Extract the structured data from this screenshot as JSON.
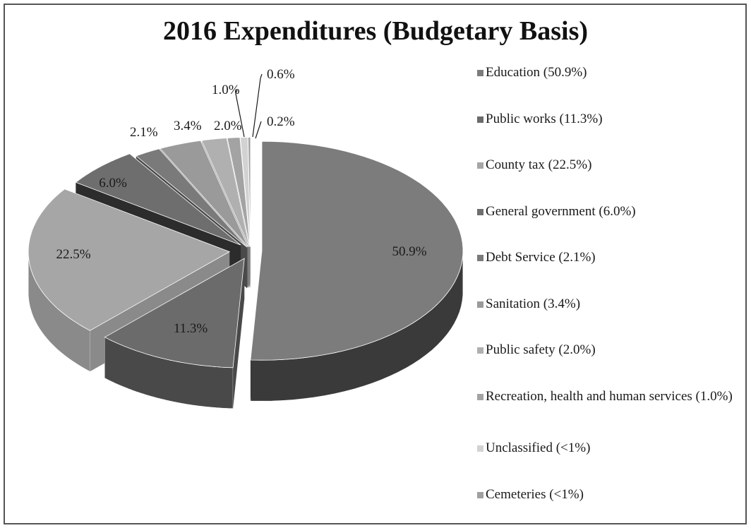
{
  "chart_data": {
    "type": "pie",
    "title": "2016 Expenditures (Budgetary Basis)",
    "slices": [
      {
        "name": "Education",
        "legend_label": "Education (50.9%)",
        "value": 50.9,
        "data_label": "50.9%",
        "color": "#7c7c7c",
        "side_color": "#3a3a3a"
      },
      {
        "name": "Public works",
        "legend_label": "Public works (11.3%)",
        "value": 11.3,
        "data_label": "11.3%",
        "color": "#6b6b6b",
        "side_color": "#494949"
      },
      {
        "name": "County tax",
        "legend_label": "County tax (22.5%)",
        "value": 22.5,
        "data_label": "22.5%",
        "color": "#a6a6a6",
        "side_color": "#8a8a8a"
      },
      {
        "name": "General government",
        "legend_label": "General government (6.0%)",
        "value": 6.0,
        "data_label": "6.0%",
        "color": "#6e6e6e",
        "side_color": "#2c2c2c"
      },
      {
        "name": "Debt Service",
        "legend_label": "Debt Service (2.1%)",
        "value": 2.1,
        "data_label": "2.1%",
        "color": "#7a7a7a",
        "side_color": "#4a4a4a"
      },
      {
        "name": "Sanitation",
        "legend_label": "Sanitation (3.4%)",
        "value": 3.4,
        "data_label": "3.4%",
        "color": "#9a9a9a",
        "side_color": "#6e6e6e"
      },
      {
        "name": "Public safety",
        "legend_label": "Public safety (2.0%)",
        "value": 2.0,
        "data_label": "2.0%",
        "color": "#b0b0b0",
        "side_color": "#868686"
      },
      {
        "name": "Recreation, health and human services",
        "legend_label": "Recreation, health and human services (1.0%)",
        "value": 1.0,
        "data_label": "1.0%",
        "color": "#a3a3a3",
        "side_color": "#7a7a7a"
      },
      {
        "name": "Unclassified",
        "legend_label": "Unclassified (<1%)",
        "value": 0.6,
        "data_label": "0.6%",
        "color": "#d2d2d2",
        "side_color": "#a8a8a8"
      },
      {
        "name": "Cemeteries",
        "legend_label": "Cemeteries (<1%)",
        "value": 0.2,
        "data_label": "0.2%",
        "color": "#a0a0a0",
        "side_color": "#777777"
      }
    ],
    "legend_position": "right",
    "style": "3d-exploded"
  }
}
